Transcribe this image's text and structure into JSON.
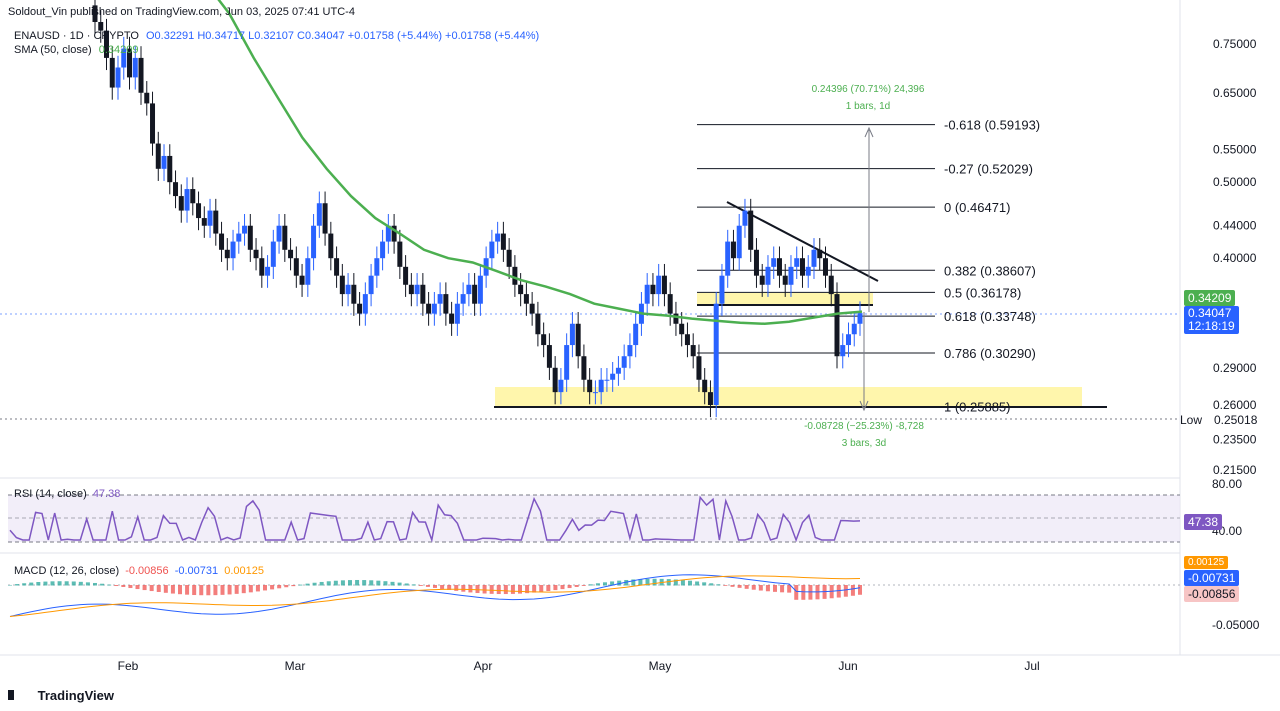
{
  "header": {
    "publisher": "Soldout_Vin published on TradingView.com, Jun 03, 2025 07:41 UTC-4",
    "symbol": "ENAUSD · 1D · CRYPTO",
    "ohlc": "O0.32291  H0.34717  L0.32107  C0.34047  +0.01758 (+5.44%)  +0.01758 (+5.44%)",
    "sma": "SMA (50, close)",
    "sma_value": "0.34209"
  },
  "colors": {
    "up": "#2962ff",
    "down": "#131722",
    "sma": "#4caf50",
    "rsi": "#7e57c2",
    "macd": "#2962ff",
    "signal": "#ff9800",
    "zone": "#fff59d",
    "price_tag": "#2962ff",
    "sma_tag": "#4caf50"
  },
  "chart_data": {
    "type": "candlestick",
    "y_scale": "log",
    "x_ticks": [
      "Feb",
      "Mar",
      "Apr",
      "May",
      "Jun",
      "Jul"
    ],
    "y_ticks": [
      "0.75000",
      "0.65000",
      "0.55000",
      "0.50000",
      "0.44000",
      "0.40000",
      "0.29000",
      "0.26000",
      "0.23500",
      "0.21500"
    ],
    "candles_close_approx": [
      0.8,
      0.78,
      0.72,
      0.66,
      0.7,
      0.74,
      0.68,
      0.72,
      0.65,
      0.63,
      0.56,
      0.52,
      0.54,
      0.5,
      0.48,
      0.46,
      0.49,
      0.47,
      0.45,
      0.44,
      0.46,
      0.43,
      0.41,
      0.4,
      0.42,
      0.43,
      0.44,
      0.41,
      0.4,
      0.38,
      0.39,
      0.42,
      0.44,
      0.41,
      0.4,
      0.38,
      0.37,
      0.4,
      0.44,
      0.47,
      0.43,
      0.4,
      0.38,
      0.36,
      0.37,
      0.35,
      0.34,
      0.36,
      0.38,
      0.4,
      0.42,
      0.44,
      0.42,
      0.39,
      0.37,
      0.36,
      0.37,
      0.35,
      0.34,
      0.35,
      0.36,
      0.34,
      0.33,
      0.35,
      0.36,
      0.37,
      0.35,
      0.38,
      0.4,
      0.42,
      0.43,
      0.41,
      0.39,
      0.37,
      0.36,
      0.35,
      0.34,
      0.32,
      0.31,
      0.29,
      0.27,
      0.28,
      0.31,
      0.33,
      0.3,
      0.28,
      0.27,
      0.27,
      0.28,
      0.28,
      0.285,
      0.29,
      0.3,
      0.31,
      0.33,
      0.35,
      0.37,
      0.36,
      0.38,
      0.36,
      0.34,
      0.33,
      0.32,
      0.31,
      0.3,
      0.28,
      0.27,
      0.26,
      0.35,
      0.38,
      0.42,
      0.4,
      0.44,
      0.46,
      0.41,
      0.38,
      0.37,
      0.39,
      0.4,
      0.38,
      0.37,
      0.39,
      0.4,
      0.38,
      0.39,
      0.41,
      0.4,
      0.38,
      0.36,
      0.3,
      0.31,
      0.32,
      0.33,
      0.34047
    ],
    "sma50_approx": [
      0.9,
      0.82,
      0.72,
      0.64,
      0.57,
      0.52,
      0.48,
      0.45,
      0.43,
      0.41,
      0.4,
      0.395,
      0.385,
      0.375,
      0.368,
      0.36,
      0.35,
      0.345,
      0.34,
      0.338,
      0.335,
      0.333,
      0.331,
      0.33,
      0.332,
      0.336,
      0.34,
      0.342
    ],
    "rsi": {
      "label": "RSI (14, close)",
      "value": "47.38",
      "levels": [
        "80.00",
        "40.00"
      ]
    },
    "macd": {
      "label": "MACD (12, 26, close)",
      "values": [
        "-0.00856",
        "-0.00731",
        "0.00125"
      ],
      "ticks": [
        "-0.05000"
      ]
    },
    "fib_levels": [
      {
        "ratio": "-0.618",
        "price": "0.59193"
      },
      {
        "ratio": "-0.27",
        "price": "0.52029"
      },
      {
        "ratio": "0",
        "price": "0.46471"
      },
      {
        "ratio": "0.382",
        "price": "0.38607"
      },
      {
        "ratio": "0.5",
        "price": "0.36178"
      },
      {
        "ratio": "0.618",
        "price": "0.33748"
      },
      {
        "ratio": "0.786",
        "price": "0.30290"
      },
      {
        "ratio": "1",
        "price": "0.25885"
      }
    ],
    "measure_up": {
      "line1": "0.24396 (70.71%) 24,396",
      "line2": "1 bars, 1d"
    },
    "measure_down": {
      "line1": "-0.08728 (−25.23%) -8,728",
      "line2": "3 bars, 3d"
    },
    "low": {
      "label": "Low",
      "value": "0.25018"
    },
    "last_price": "0.34047",
    "countdown": "12:18:19",
    "sma_price": "0.34209",
    "rsi_value": "47.38",
    "macd_tags": [
      "0.00125",
      "-0.00731",
      "-0.00856"
    ]
  },
  "footer": {
    "brand": "TradingView"
  }
}
